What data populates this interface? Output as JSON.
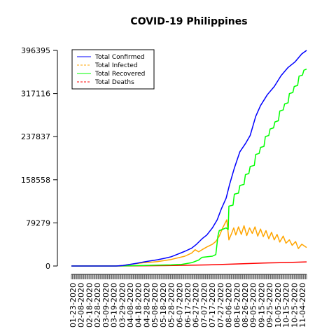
{
  "chart_data": {
    "type": "line",
    "title": "COVID-19 Philippines",
    "xlabel": "",
    "ylabel": "",
    "ylim": [
      0,
      396395
    ],
    "yticks": [
      0,
      79279,
      158558,
      237837,
      317116,
      396395
    ],
    "x_tick_labels": [
      "01-23-2020",
      "02-08-2020",
      "02-18-2020",
      "02-28-2020",
      "03-09-2020",
      "03-19-2020",
      "03-29-2020",
      "04-08-2020",
      "04-18-2020",
      "04-28-2020",
      "05-08-2020",
      "05-18-2020",
      "05-28-2020",
      "06-07-2020",
      "06-17-2020",
      "06-27-2020",
      "07-07-2020",
      "07-17-2020",
      "07-27-2020",
      "08-06-2020",
      "08-16-2020",
      "08-26-2020",
      "09-05-2020",
      "09-15-2020",
      "09-25-2020",
      "10-05-2020",
      "10-15-2020",
      "10-25-2020",
      "11-04-2020"
    ],
    "legend": {
      "position": "top-left",
      "entries": [
        {
          "label": "Total Confirmed",
          "color": "#0000ff",
          "dash": "solid"
        },
        {
          "label": "Total Infected",
          "color": "#ffa500",
          "dash": "dashed"
        },
        {
          "label": "Total Recovered",
          "color": "#00ff00",
          "dash": "solid"
        },
        {
          "label": "Total Deaths",
          "color": "#ff0000",
          "dash": "dashed"
        }
      ]
    },
    "series": [
      {
        "name": "Total Confirmed",
        "color": "#0000ff",
        "points": [
          [
            0,
            0
          ],
          [
            65,
            0
          ],
          [
            75,
            1000
          ],
          [
            85,
            3000
          ],
          [
            95,
            5000
          ],
          [
            105,
            7500
          ],
          [
            115,
            9500
          ],
          [
            125,
            11500
          ],
          [
            135,
            14000
          ],
          [
            145,
            17000
          ],
          [
            155,
            22000
          ],
          [
            165,
            27000
          ],
          [
            175,
            33000
          ],
          [
            182,
            40000
          ],
          [
            190,
            50000
          ],
          [
            197,
            57000
          ],
          [
            205,
            70000
          ],
          [
            212,
            85000
          ],
          [
            218,
            105000
          ],
          [
            225,
            125000
          ],
          [
            230,
            150000
          ],
          [
            237,
            180000
          ],
          [
            245,
            210000
          ],
          [
            253,
            225000
          ],
          [
            260,
            240000
          ],
          [
            268,
            275000
          ],
          [
            275,
            295000
          ],
          [
            285,
            315000
          ],
          [
            295,
            330000
          ],
          [
            305,
            350000
          ],
          [
            315,
            365000
          ],
          [
            325,
            375000
          ],
          [
            335,
            390000
          ],
          [
            342,
            396395
          ]
        ]
      },
      {
        "name": "Total Infected",
        "color": "#ffa500",
        "points": [
          [
            0,
            0
          ],
          [
            65,
            0
          ],
          [
            75,
            1000
          ],
          [
            85,
            3000
          ],
          [
            95,
            4500
          ],
          [
            105,
            6000
          ],
          [
            115,
            7000
          ],
          [
            125,
            8000
          ],
          [
            135,
            10000
          ],
          [
            145,
            12000
          ],
          [
            155,
            15000
          ],
          [
            165,
            18000
          ],
          [
            175,
            24000
          ],
          [
            180,
            30000
          ],
          [
            185,
            26000
          ],
          [
            190,
            30000
          ],
          [
            197,
            35000
          ],
          [
            205,
            40000
          ],
          [
            210,
            45000
          ],
          [
            215,
            55000
          ],
          [
            220,
            70000
          ],
          [
            226,
            85000
          ],
          [
            229,
            48000
          ],
          [
            233,
            60000
          ],
          [
            236,
            70000
          ],
          [
            239,
            57000
          ],
          [
            243,
            72000
          ],
          [
            247,
            58000
          ],
          [
            251,
            74000
          ],
          [
            255,
            56000
          ],
          [
            259,
            70000
          ],
          [
            263,
            60000
          ],
          [
            267,
            72000
          ],
          [
            271,
            55000
          ],
          [
            275,
            68000
          ],
          [
            279,
            54000
          ],
          [
            283,
            65000
          ],
          [
            287,
            50000
          ],
          [
            291,
            62000
          ],
          [
            295,
            48000
          ],
          [
            299,
            58000
          ],
          [
            303,
            44000
          ],
          [
            308,
            55000
          ],
          [
            312,
            42000
          ],
          [
            317,
            48000
          ],
          [
            321,
            38000
          ],
          [
            326,
            45000
          ],
          [
            330,
            32000
          ],
          [
            335,
            40000
          ],
          [
            342,
            34000
          ]
        ]
      },
      {
        "name": "Total Recovered",
        "color": "#00ff00",
        "points": [
          [
            0,
            0
          ],
          [
            65,
            0
          ],
          [
            85,
            500
          ],
          [
            105,
            1000
          ],
          [
            125,
            1500
          ],
          [
            145,
            2000
          ],
          [
            160,
            3000
          ],
          [
            175,
            6000
          ],
          [
            185,
            11000
          ],
          [
            190,
            16000
          ],
          [
            198,
            17000
          ],
          [
            205,
            18000
          ],
          [
            210,
            21000
          ],
          [
            213,
            55000
          ],
          [
            215,
            65000
          ],
          [
            225,
            70000
          ],
          [
            228,
            67000
          ],
          [
            229,
            110000
          ],
          [
            235,
            112000
          ],
          [
            237,
            132000
          ],
          [
            243,
            134000
          ],
          [
            245,
            148000
          ],
          [
            251,
            150000
          ],
          [
            253,
            168000
          ],
          [
            258,
            170000
          ],
          [
            260,
            183000
          ],
          [
            266,
            185000
          ],
          [
            268,
            205000
          ],
          [
            273,
            207000
          ],
          [
            275,
            218000
          ],
          [
            280,
            220000
          ],
          [
            282,
            238000
          ],
          [
            287,
            240000
          ],
          [
            289,
            252000
          ],
          [
            294,
            254000
          ],
          [
            296,
            265000
          ],
          [
            301,
            267000
          ],
          [
            303,
            285000
          ],
          [
            308,
            287000
          ],
          [
            310,
            298000
          ],
          [
            315,
            300000
          ],
          [
            317,
            317000
          ],
          [
            322,
            319000
          ],
          [
            324,
            330000
          ],
          [
            329,
            332000
          ],
          [
            331,
            349000
          ],
          [
            336,
            351000
          ],
          [
            338,
            360000
          ],
          [
            342,
            362000
          ]
        ]
      },
      {
        "name": "Total Deaths",
        "color": "#ff0000",
        "points": [
          [
            0,
            0
          ],
          [
            65,
            0
          ],
          [
            100,
            300
          ],
          [
            140,
            800
          ],
          [
            180,
            1500
          ],
          [
            200,
            2000
          ],
          [
            220,
            2800
          ],
          [
            250,
            4200
          ],
          [
            280,
            5500
          ],
          [
            310,
            6300
          ],
          [
            342,
            7539
          ]
        ]
      }
    ]
  }
}
